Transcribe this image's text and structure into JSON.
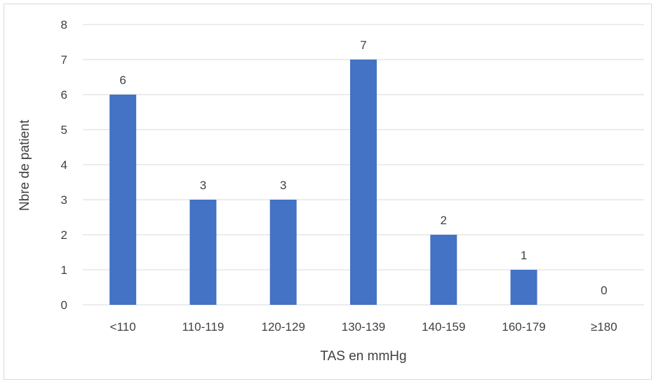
{
  "chart_data": {
    "type": "bar",
    "title": "",
    "xlabel": "TAS en mmHg",
    "ylabel": "Nbre de patient",
    "categories": [
      "<110",
      "110-119",
      "120-129",
      "130-139",
      "140-159",
      "160-179",
      "≥180"
    ],
    "values": [
      6,
      3,
      3,
      7,
      2,
      1,
      0
    ],
    "ylim": [
      0,
      8
    ],
    "yticks": [
      "0",
      "1",
      "2",
      "3",
      "4",
      "5",
      "6",
      "7",
      "8"
    ],
    "grid": true,
    "legend": "none",
    "data_labels": true,
    "bar_color": "#4472C4",
    "grid_color": "#d9d9d9"
  }
}
